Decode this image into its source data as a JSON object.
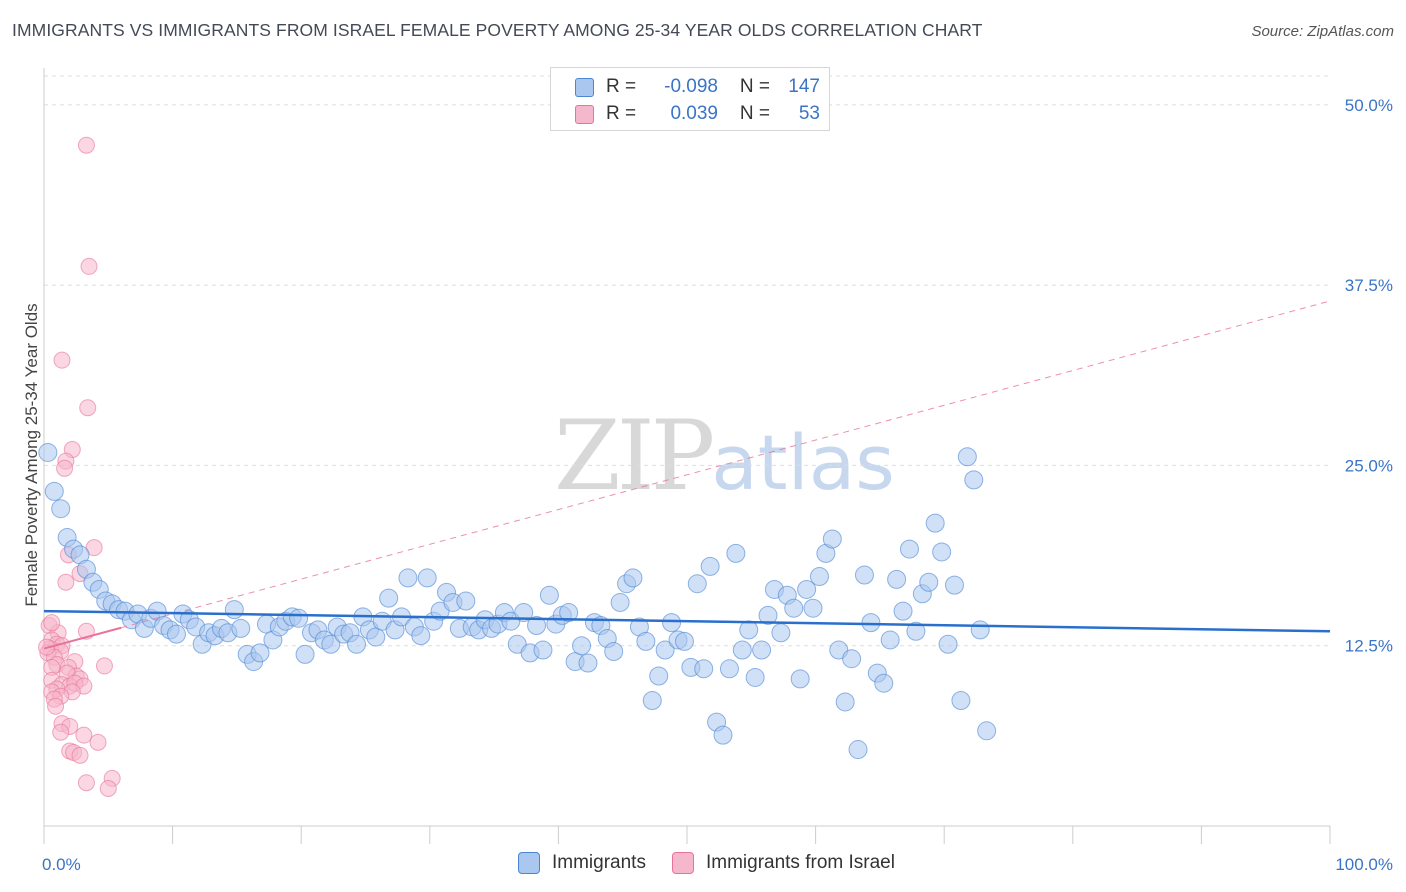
{
  "header": {
    "title": "IMMIGRANTS VS IMMIGRANTS FROM ISRAEL FEMALE POVERTY AMONG 25-34 YEAR OLDS CORRELATION CHART",
    "source": "Source: ZipAtlas.com"
  },
  "watermark": {
    "zip": "ZIP",
    "atlas": "atlas"
  },
  "legend": {
    "series1": {
      "r_label": "R =",
      "r_value": "-0.098",
      "n_label": "N =",
      "n_value": "147",
      "color": "#a9c7ef"
    },
    "series2": {
      "r_label": "R =",
      "r_value": "0.039",
      "n_label": "N =",
      "n_value": "53",
      "color": "#f5b7cb"
    }
  },
  "bottom_legend": {
    "item1": "Immigrants",
    "item2": "Immigrants from Israel"
  },
  "chart_data": {
    "type": "scatter",
    "title": "IMMIGRANTS VS IMMIGRANTS FROM ISRAEL FEMALE POVERTY AMONG 25-34 YEAR OLDS CORRELATION CHART",
    "xlabel": "",
    "ylabel": "Female Poverty Among 25-34 Year Olds",
    "xlim": [
      0,
      100
    ],
    "ylim": [
      0,
      52
    ],
    "x_tick_labels": {
      "left": "0.0%",
      "right": "100.0%"
    },
    "y_ticks": [
      12.5,
      25.0,
      37.5,
      50.0
    ],
    "y_tick_labels": [
      "12.5%",
      "25.0%",
      "37.5%",
      "50.0%"
    ],
    "grid": true,
    "series": [
      {
        "name": "Immigrants",
        "color": "#4a86d4",
        "fill": "#a9c7ef",
        "trend": {
          "x": [
            0,
            100
          ],
          "y": [
            14.9,
            13.5
          ],
          "style": "solid"
        },
        "points": [
          [
            0.3,
            25.9
          ],
          [
            0.8,
            23.2
          ],
          [
            1.3,
            22.0
          ],
          [
            1.8,
            20.0
          ],
          [
            2.3,
            19.2
          ],
          [
            2.8,
            18.8
          ],
          [
            3.3,
            17.8
          ],
          [
            3.8,
            16.9
          ],
          [
            4.3,
            16.4
          ],
          [
            4.8,
            15.6
          ],
          [
            5.3,
            15.4
          ],
          [
            5.8,
            15.0
          ],
          [
            6.3,
            14.9
          ],
          [
            6.8,
            14.3
          ],
          [
            7.3,
            14.7
          ],
          [
            7.8,
            13.7
          ],
          [
            8.3,
            14.4
          ],
          [
            8.8,
            14.9
          ],
          [
            9.3,
            13.9
          ],
          [
            9.8,
            13.6
          ],
          [
            10.3,
            13.3
          ],
          [
            10.8,
            14.7
          ],
          [
            11.3,
            14.3
          ],
          [
            11.8,
            13.8
          ],
          [
            12.3,
            12.6
          ],
          [
            12.8,
            13.4
          ],
          [
            13.3,
            13.2
          ],
          [
            13.8,
            13.7
          ],
          [
            14.3,
            13.4
          ],
          [
            14.8,
            15.0
          ],
          [
            15.3,
            13.7
          ],
          [
            15.8,
            11.9
          ],
          [
            16.3,
            11.4
          ],
          [
            16.8,
            12.0
          ],
          [
            17.3,
            14.0
          ],
          [
            17.8,
            12.9
          ],
          [
            18.3,
            13.8
          ],
          [
            18.8,
            14.2
          ],
          [
            19.3,
            14.5
          ],
          [
            19.8,
            14.4
          ],
          [
            20.3,
            11.9
          ],
          [
            20.8,
            13.4
          ],
          [
            21.3,
            13.6
          ],
          [
            21.8,
            12.9
          ],
          [
            22.3,
            12.6
          ],
          [
            22.8,
            13.8
          ],
          [
            23.3,
            13.3
          ],
          [
            23.8,
            13.4
          ],
          [
            24.3,
            12.6
          ],
          [
            24.8,
            14.5
          ],
          [
            25.3,
            13.6
          ],
          [
            25.8,
            13.1
          ],
          [
            26.3,
            14.2
          ],
          [
            26.8,
            15.8
          ],
          [
            27.3,
            13.6
          ],
          [
            27.8,
            14.5
          ],
          [
            28.3,
            17.2
          ],
          [
            28.8,
            13.8
          ],
          [
            29.3,
            13.2
          ],
          [
            29.8,
            17.2
          ],
          [
            30.3,
            14.2
          ],
          [
            30.8,
            14.9
          ],
          [
            31.3,
            16.2
          ],
          [
            31.8,
            15.5
          ],
          [
            32.3,
            13.7
          ],
          [
            32.8,
            15.6
          ],
          [
            33.3,
            13.8
          ],
          [
            33.8,
            13.6
          ],
          [
            34.3,
            14.3
          ],
          [
            34.8,
            13.7
          ],
          [
            35.3,
            14.0
          ],
          [
            35.8,
            14.8
          ],
          [
            36.3,
            14.2
          ],
          [
            36.8,
            12.6
          ],
          [
            37.3,
            14.8
          ],
          [
            37.8,
            12.0
          ],
          [
            38.3,
            13.9
          ],
          [
            38.8,
            12.2
          ],
          [
            39.3,
            16.0
          ],
          [
            39.8,
            14.0
          ],
          [
            40.3,
            14.6
          ],
          [
            40.8,
            14.8
          ],
          [
            41.3,
            11.4
          ],
          [
            41.8,
            12.5
          ],
          [
            42.3,
            11.3
          ],
          [
            42.8,
            14.1
          ],
          [
            43.3,
            13.9
          ],
          [
            43.8,
            13.0
          ],
          [
            44.3,
            12.1
          ],
          [
            44.8,
            15.5
          ],
          [
            45.3,
            16.8
          ],
          [
            45.8,
            17.2
          ],
          [
            46.3,
            13.8
          ],
          [
            46.8,
            12.8
          ],
          [
            47.3,
            8.7
          ],
          [
            47.8,
            10.4
          ],
          [
            48.3,
            12.2
          ],
          [
            48.8,
            14.1
          ],
          [
            49.3,
            12.9
          ],
          [
            49.8,
            12.8
          ],
          [
            50.3,
            11.0
          ],
          [
            50.8,
            16.8
          ],
          [
            51.3,
            10.9
          ],
          [
            51.8,
            18.0
          ],
          [
            52.3,
            7.2
          ],
          [
            52.8,
            6.3
          ],
          [
            53.3,
            10.9
          ],
          [
            53.8,
            18.9
          ],
          [
            54.3,
            12.2
          ],
          [
            54.8,
            13.6
          ],
          [
            55.3,
            10.3
          ],
          [
            55.8,
            12.2
          ],
          [
            56.3,
            14.6
          ],
          [
            56.8,
            16.4
          ],
          [
            57.3,
            13.4
          ],
          [
            57.8,
            16.0
          ],
          [
            58.3,
            15.1
          ],
          [
            58.8,
            10.2
          ],
          [
            59.3,
            16.4
          ],
          [
            59.8,
            15.1
          ],
          [
            60.3,
            17.3
          ],
          [
            60.8,
            18.9
          ],
          [
            61.3,
            19.9
          ],
          [
            61.8,
            12.2
          ],
          [
            62.3,
            8.6
          ],
          [
            62.8,
            11.6
          ],
          [
            63.3,
            5.3
          ],
          [
            63.8,
            17.4
          ],
          [
            64.3,
            14.1
          ],
          [
            64.8,
            10.6
          ],
          [
            65.3,
            9.9
          ],
          [
            65.8,
            12.9
          ],
          [
            66.3,
            17.1
          ],
          [
            66.8,
            14.9
          ],
          [
            67.3,
            19.2
          ],
          [
            67.8,
            13.5
          ],
          [
            68.3,
            16.1
          ],
          [
            68.8,
            16.9
          ],
          [
            69.3,
            21.0
          ],
          [
            69.8,
            19.0
          ],
          [
            70.3,
            12.6
          ],
          [
            70.8,
            16.7
          ],
          [
            71.3,
            8.7
          ],
          [
            71.8,
            25.6
          ],
          [
            72.3,
            24.0
          ],
          [
            72.8,
            13.6
          ],
          [
            73.3,
            6.6
          ]
        ]
      },
      {
        "name": "Immigrants from Israel",
        "color": "#e8739a",
        "fill": "#f5b7cb",
        "trend": {
          "x": [
            0,
            100
          ],
          "y": [
            12.3,
            36.4
          ],
          "style": "dashed"
        },
        "points": [
          [
            3.3,
            47.2
          ],
          [
            3.5,
            38.8
          ],
          [
            1.4,
            32.3
          ],
          [
            3.4,
            29.0
          ],
          [
            2.2,
            26.1
          ],
          [
            1.7,
            25.3
          ],
          [
            1.6,
            24.8
          ],
          [
            3.9,
            19.3
          ],
          [
            1.9,
            18.8
          ],
          [
            2.8,
            17.5
          ],
          [
            1.7,
            16.9
          ],
          [
            0.4,
            13.9
          ],
          [
            1.1,
            13.4
          ],
          [
            3.3,
            13.5
          ],
          [
            0.6,
            12.9
          ],
          [
            1.0,
            12.6
          ],
          [
            1.4,
            12.5
          ],
          [
            0.5,
            12.3
          ],
          [
            1.3,
            12.1
          ],
          [
            0.3,
            12.0
          ],
          [
            0.8,
            11.7
          ],
          [
            1.0,
            11.2
          ],
          [
            2.4,
            11.4
          ],
          [
            0.6,
            11.0
          ],
          [
            1.9,
            11.0
          ],
          [
            4.7,
            11.1
          ],
          [
            2.5,
            10.4
          ],
          [
            1.8,
            10.6
          ],
          [
            0.6,
            10.1
          ],
          [
            2.8,
            10.2
          ],
          [
            1.4,
            9.8
          ],
          [
            2.0,
            9.7
          ],
          [
            2.4,
            9.9
          ],
          [
            1.0,
            9.5
          ],
          [
            3.1,
            9.7
          ],
          [
            0.6,
            9.3
          ],
          [
            2.2,
            9.3
          ],
          [
            1.3,
            9.0
          ],
          [
            0.8,
            8.8
          ],
          [
            0.9,
            8.3
          ],
          [
            1.4,
            7.1
          ],
          [
            2.0,
            6.9
          ],
          [
            1.3,
            6.5
          ],
          [
            3.1,
            6.3
          ],
          [
            4.2,
            5.8
          ],
          [
            2.0,
            5.2
          ],
          [
            2.3,
            5.1
          ],
          [
            2.8,
            4.9
          ],
          [
            3.3,
            3.0
          ],
          [
            5.3,
            3.3
          ],
          [
            5.0,
            2.6
          ],
          [
            0.6,
            14.1
          ],
          [
            0.2,
            12.4
          ]
        ]
      }
    ]
  }
}
